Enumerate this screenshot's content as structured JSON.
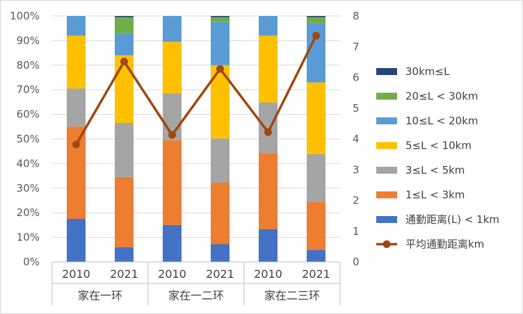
{
  "chart_data": {
    "type": "bar",
    "stacked": true,
    "categories": [
      "2010",
      "2021",
      "2010",
      "2021",
      "2010",
      "2021"
    ],
    "groups": [
      {
        "label": "家在一环",
        "span": [
          0,
          1
        ]
      },
      {
        "label": "家在一二环",
        "span": [
          2,
          3
        ]
      },
      {
        "label": "家在二三环",
        "span": [
          4,
          5
        ]
      }
    ],
    "left_axis": {
      "ylim": [
        0,
        100
      ],
      "ticks": [
        "0%",
        "10%",
        "20%",
        "30%",
        "40%",
        "50%",
        "60%",
        "70%",
        "80%",
        "90%",
        "100%"
      ]
    },
    "right_axis": {
      "ylim": [
        0,
        8
      ],
      "ticks": [
        "0",
        "1",
        "2",
        "3",
        "4",
        "5",
        "6",
        "7",
        "8"
      ]
    },
    "grid": true,
    "legend_position": "right",
    "series": [
      {
        "name": "通勤距离(L) < 1km",
        "color": "#4472C4",
        "values": [
          17.5,
          6,
          15,
          7.2,
          13.3,
          4.8
        ]
      },
      {
        "name": "1≤L < 3km",
        "color": "#ED7D31",
        "values": [
          37.5,
          28.5,
          34.5,
          25,
          31,
          19.5
        ]
      },
      {
        "name": "3≤L < 5km",
        "color": "#A5A5A5",
        "values": [
          15.5,
          22,
          19,
          18,
          20.5,
          19.5
        ]
      },
      {
        "name": "5≤L < 10km",
        "color": "#FFC000",
        "values": [
          21.5,
          27.5,
          21,
          29.8,
          27.2,
          29.2
        ]
      },
      {
        "name": "10≤L < 20km",
        "color": "#5B9BD5",
        "values": [
          8,
          9,
          10.5,
          17.5,
          8,
          24
        ]
      },
      {
        "name": "20≤L < 30km",
        "color": "#70AD47",
        "values": [
          0,
          6.5,
          0,
          2,
          0,
          2.5
        ]
      },
      {
        "name": "30km≤L",
        "color": "#264478",
        "values": [
          0,
          0.5,
          0,
          0.5,
          0,
          0.5
        ]
      }
    ],
    "line_series": {
      "name": "平均通勤距离km",
      "color": "#9E480E",
      "axis": "right",
      "values": [
        3.82,
        6.52,
        4.13,
        6.28,
        4.22,
        7.36
      ]
    }
  }
}
